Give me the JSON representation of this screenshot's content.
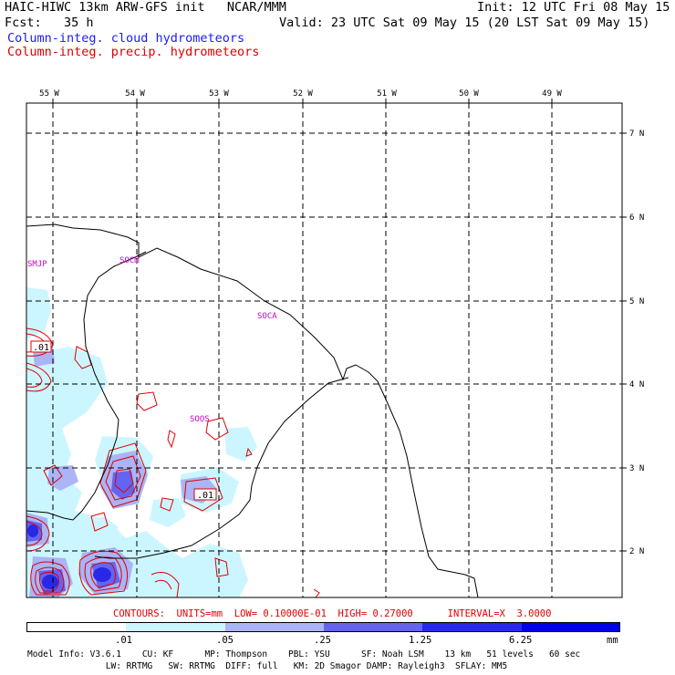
{
  "header": {
    "title_left": "HAIC-HIWC 13km ARW-GFS init   NCAR/MMM",
    "init": "Init: 12 UTC Fri 08 May 15",
    "fcst": "Fcst:   35 h",
    "valid": "Valid: 23 UTC Sat 09 May 15 (20 LST Sat 09 May 15)",
    "legend_blue": "Column-integ. cloud hydrometeors",
    "legend_red": "Column-integ. precip. hydrometeors"
  },
  "map": {
    "lon_labels": [
      "55 W",
      "54 W",
      "53 W",
      "52 W",
      "51 W",
      "50 W",
      "49 W"
    ],
    "lat_labels": [
      "7 N",
      "6 N",
      "5 N",
      "4 N",
      "3 N",
      "2 N"
    ],
    "stations": [
      "SMJP",
      "SOCM",
      "SOCA",
      "SOOS"
    ],
    "contour_labels": [
      ".01",
      ".01"
    ],
    "colors": {
      "cloud_fill_light": "#ccf6ff",
      "cloud_fill_mid": "#aab4f6",
      "cloud_fill_dark": "#6464f0",
      "cloud_fill_deep": "#2828e6",
      "precip_contour": "#e00000",
      "station": "#cc00cc",
      "grid": "#000000"
    }
  },
  "contours_info": "CONTOURS:  UNITS=mm  LOW= 0.10000E-01  HIGH= 0.27000      INTERVAL=X  3.0000",
  "colorbar": {
    "ticks": [
      ".01",
      ".05",
      ".25",
      "1.25",
      "6.25"
    ],
    "unit": "mm",
    "colors": [
      "#ffffff",
      "#ccf6ff",
      "#aab4f6",
      "#6464f0",
      "#2828e6",
      "#0000e6"
    ]
  },
  "model_info": {
    "line1": "Model Info: V3.6.1    CU: KF      MP: Thompson    PBL: YSU      SF: Noah LSM    13 km   51 levels   60 sec",
    "line2": "               LW: RRTMG   SW: RRTMG  DIFF: full   KM: 2D Smagor DAMP: Rayleigh3  SFLAY: MM5"
  }
}
